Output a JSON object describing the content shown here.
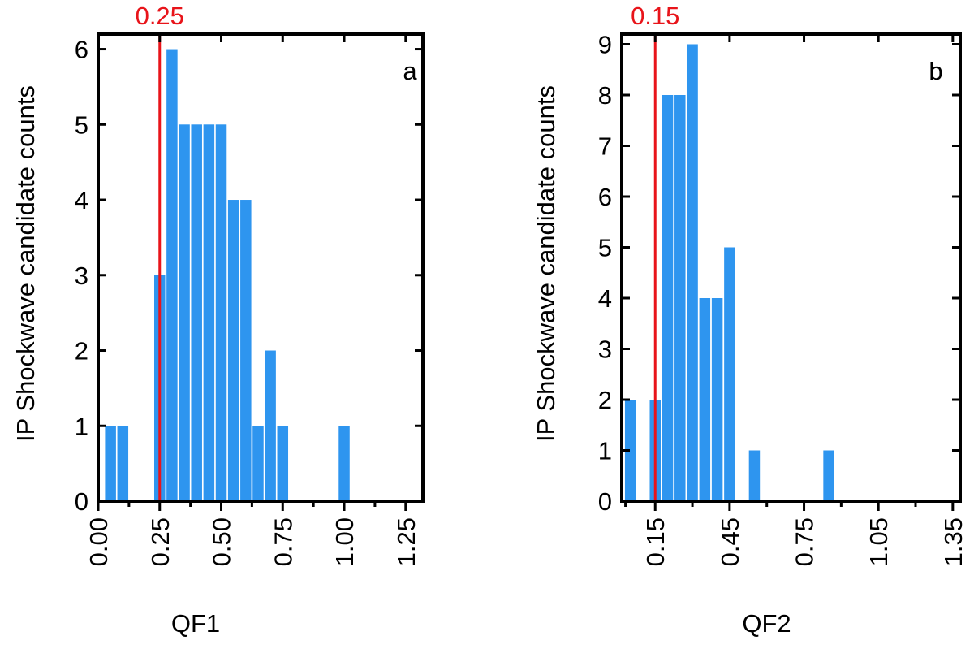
{
  "chart_data": [
    {
      "type": "bar",
      "panel_label": "a",
      "xlabel": "QF1",
      "ylabel": "IP Shockwave candidate counts",
      "xlim": [
        0,
        1.32
      ],
      "ylim": [
        0,
        6.2
      ],
      "xticks_major": [
        "0.00",
        "0.25",
        "0.50",
        "0.75",
        "1.00",
        "1.25"
      ],
      "xticks_major_values": [
        0,
        0.25,
        0.5,
        0.75,
        1.0,
        1.25
      ],
      "xticks_minor_values": [
        0.125,
        0.375,
        0.625,
        0.875,
        1.125
      ],
      "yticks": [
        "0",
        "1",
        "2",
        "3",
        "4",
        "5",
        "6"
      ],
      "bin_width": 0.05,
      "x": [
        0.05,
        0.1,
        0.25,
        0.3,
        0.35,
        0.4,
        0.45,
        0.5,
        0.55,
        0.6,
        0.65,
        0.7,
        0.75,
        1.0
      ],
      "values": [
        1,
        1,
        3,
        6,
        5,
        5,
        5,
        5,
        4,
        4,
        1,
        2,
        1,
        1
      ],
      "threshold": {
        "value": 0.25,
        "label": "0.25",
        "color": "#e8141a"
      },
      "bar_color": "#2e95ef"
    },
    {
      "type": "bar",
      "panel_label": "b",
      "xlabel": "QF2",
      "ylabel": "IP Shockwave candidate counts",
      "xlim": [
        0.015,
        1.38
      ],
      "ylim": [
        0,
        9.2
      ],
      "xticks_major": [
        "0.15",
        "0.45",
        "0.75",
        "1.05",
        "1.35"
      ],
      "xticks_major_values": [
        0.15,
        0.45,
        0.75,
        1.05,
        1.35
      ],
      "xticks_minor_values": [
        0.03,
        0.3,
        0.6,
        0.9,
        1.2
      ],
      "yticks": [
        "0",
        "1",
        "2",
        "3",
        "4",
        "5",
        "6",
        "7",
        "8",
        "9"
      ],
      "bin_width": 0.05,
      "x": [
        0.05,
        0.15,
        0.2,
        0.25,
        0.3,
        0.35,
        0.4,
        0.45,
        0.55,
        0.85
      ],
      "values": [
        2,
        2,
        8,
        8,
        9,
        4,
        4,
        5,
        1,
        1
      ],
      "threshold": {
        "value": 0.15,
        "label": "0.15",
        "color": "#e8141a"
      },
      "bar_color": "#2e95ef"
    }
  ]
}
